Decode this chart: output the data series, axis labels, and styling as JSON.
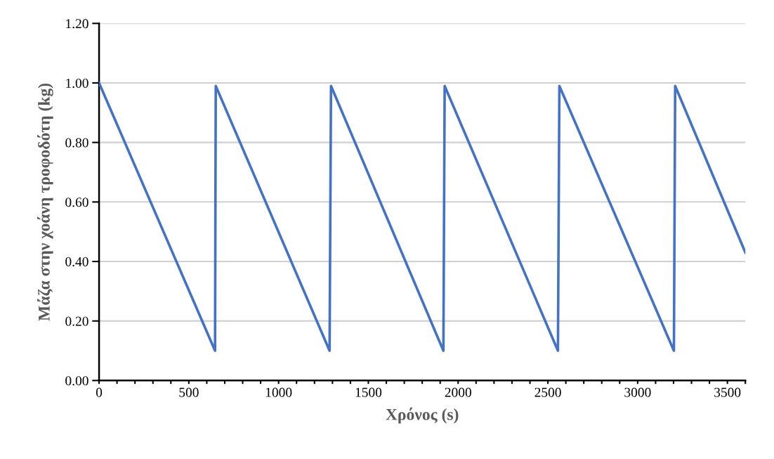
{
  "chart_data": {
    "type": "line",
    "xlabel": "Χρόνος (s)",
    "ylabel": "Μάζα στην χοάνη τροφοδότη (kg)",
    "x": [
      0,
      646,
      650,
      1284,
      1292,
      1918,
      1925,
      2556,
      2564,
      3202,
      3209,
      3600
    ],
    "series": [
      {
        "color": "#4472c4",
        "values": [
          1.0,
          0.1,
          0.99,
          0.1,
          0.99,
          0.1,
          0.99,
          0.1,
          0.99,
          0.1,
          0.99,
          0.43
        ]
      }
    ],
    "xlim": [
      0,
      3600
    ],
    "xticks": [
      0,
      {
        "value": 100,
        "label": null
      },
      {
        "value": 200,
        "label": null
      },
      {
        "value": 300,
        "label": null
      },
      {
        "value": 400,
        "label": null
      },
      500,
      {
        "value": 600,
        "label": null
      },
      {
        "value": 700,
        "label": null
      },
      {
        "value": 800,
        "label": null
      },
      {
        "value": 900,
        "label": null
      },
      1000,
      {
        "value": 1100,
        "label": null
      },
      {
        "value": 1200,
        "label": null
      },
      {
        "value": 1300,
        "label": null
      },
      {
        "value": 1400,
        "label": null
      },
      1500,
      {
        "value": 1600,
        "label": null
      },
      {
        "value": 1700,
        "label": null
      },
      {
        "value": 1800,
        "label": null
      },
      {
        "value": 1900,
        "label": null
      },
      2000,
      {
        "value": 2100,
        "label": null
      },
      {
        "value": 2200,
        "label": null
      },
      {
        "value": 2300,
        "label": null
      },
      {
        "value": 2400,
        "label": null
      },
      2500,
      {
        "value": 2600,
        "label": null
      },
      {
        "value": 2700,
        "label": null
      },
      {
        "value": 2800,
        "label": null
      },
      {
        "value": 2900,
        "label": null
      },
      3000,
      {
        "value": 3100,
        "label": null
      },
      {
        "value": 3200,
        "label": null
      },
      {
        "value": 3300,
        "label": null
      },
      {
        "value": 3400,
        "label": null
      },
      3500,
      {
        "value": 3600,
        "label": null
      }
    ],
    "ylim": [
      0,
      1.2
    ],
    "yticks": [
      {
        "value": 0,
        "label": "0.00"
      },
      {
        "value": 0.2,
        "label": "0.20"
      },
      {
        "value": 0.4,
        "label": "0.40"
      },
      {
        "value": 0.6,
        "label": "0.60"
      },
      {
        "value": 0.8,
        "label": "0.80"
      },
      {
        "value": 1.0,
        "label": "1.00"
      },
      {
        "value": 1.2,
        "label": "1.20"
      }
    ],
    "grid": "y",
    "marker": "none",
    "line_style": "solid",
    "legend": false
  }
}
